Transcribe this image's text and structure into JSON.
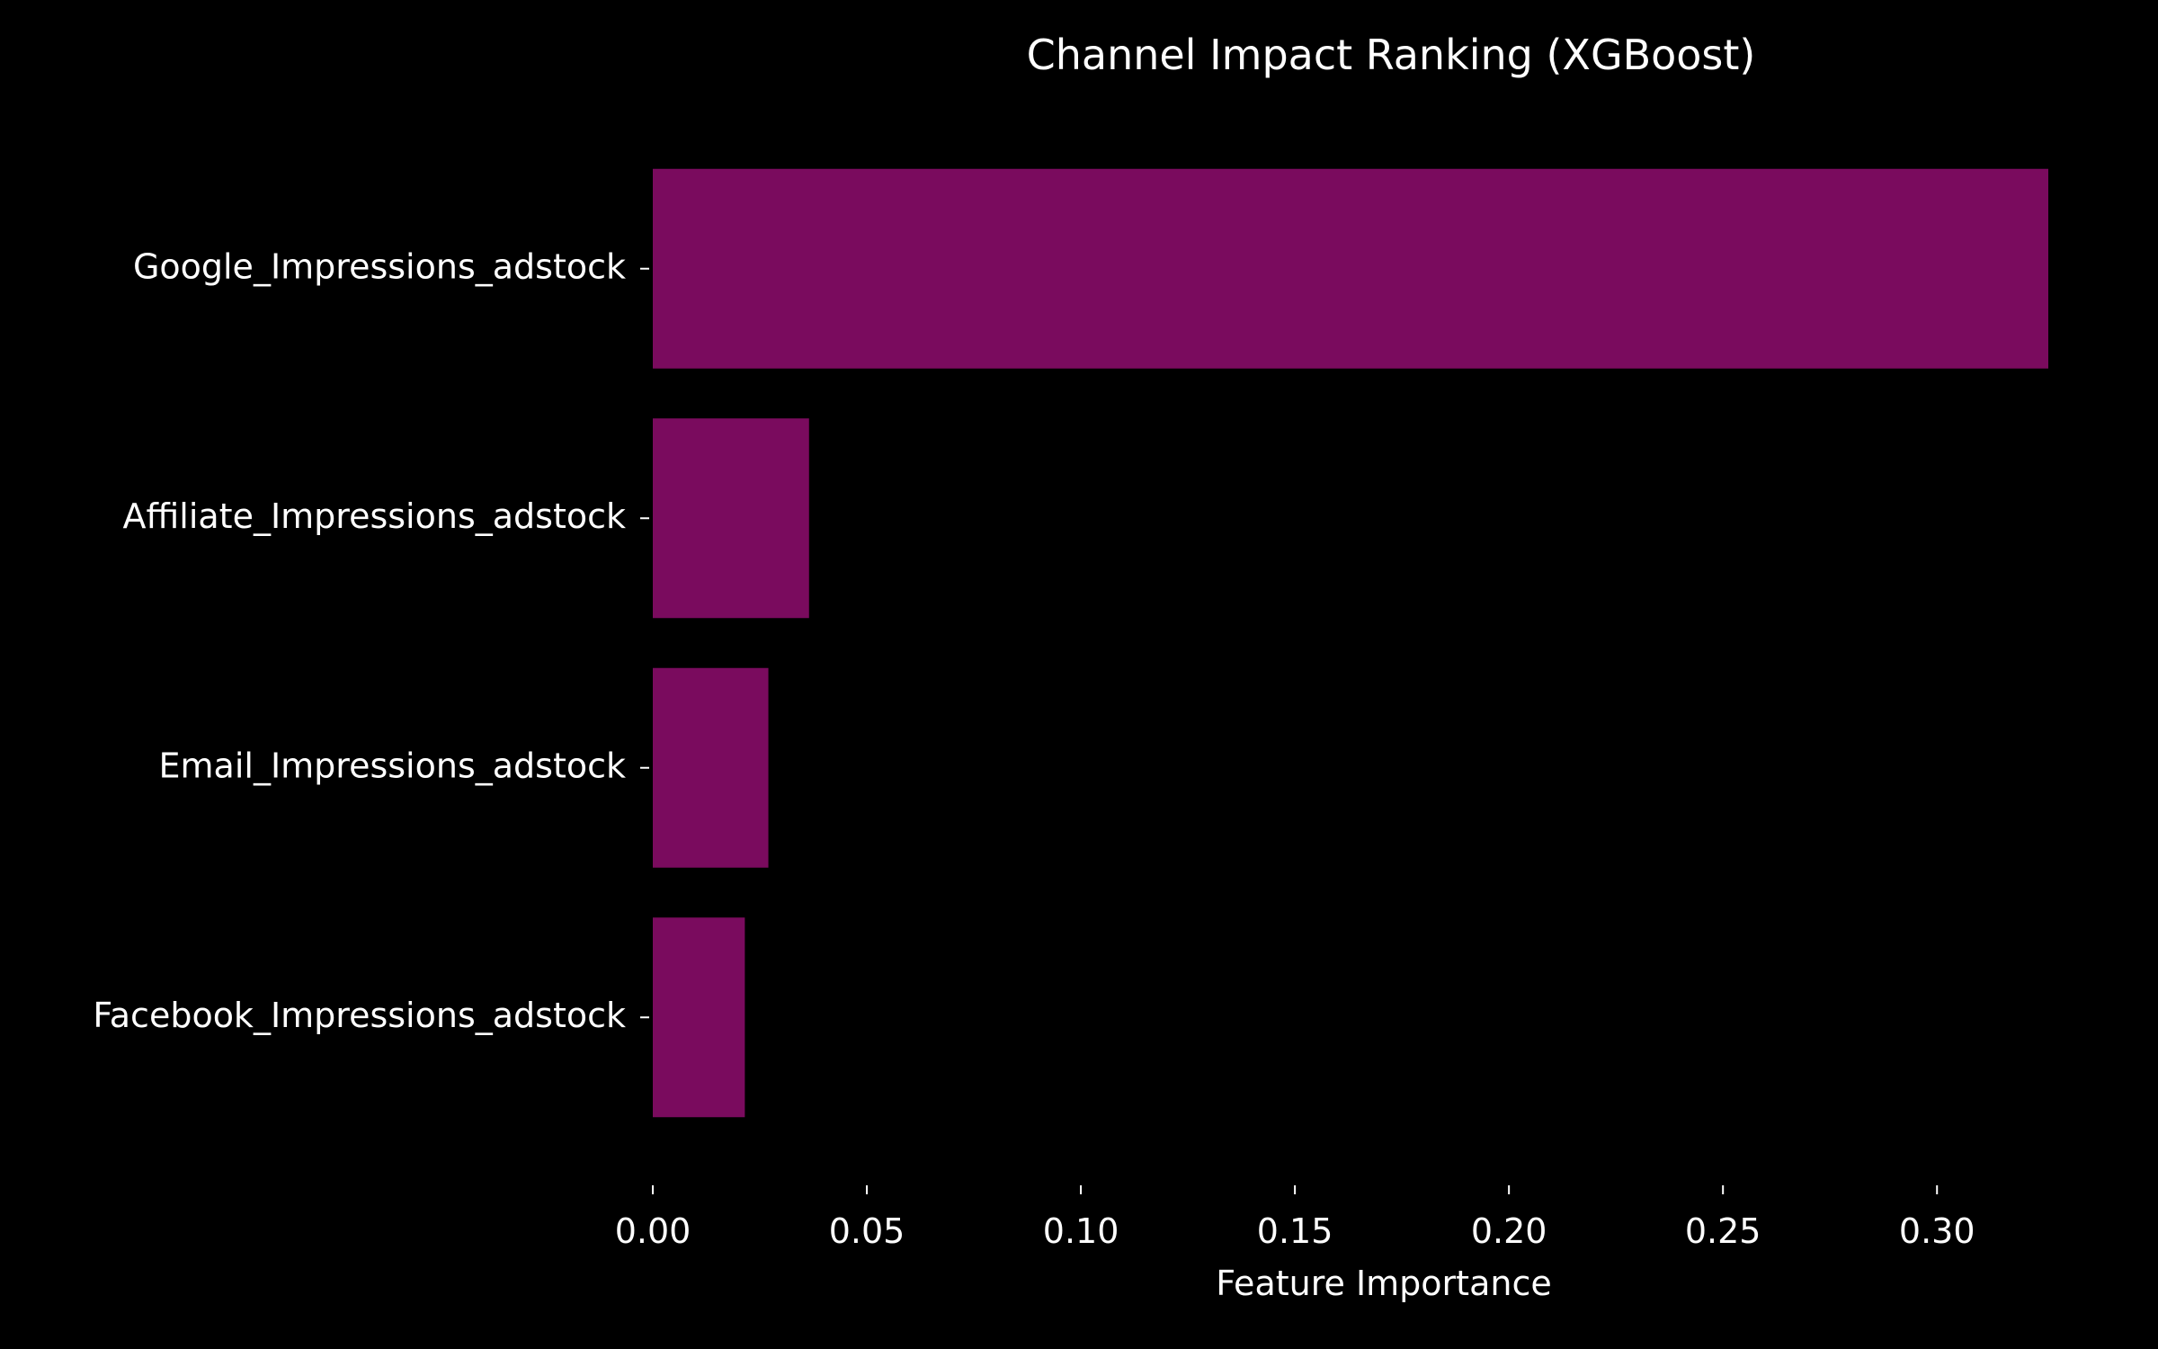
{
  "chart_data": {
    "type": "bar",
    "orientation": "horizontal",
    "title": "Channel Impact Ranking (XGBoost)",
    "xlabel": "Feature Importance",
    "ylabel": "",
    "categories": [
      "Google_Impressions_adstock",
      "Affiliate_Impressions_adstock",
      "Email_Impressions_adstock",
      "Facebook_Impressions_adstock"
    ],
    "values": [
      0.326,
      0.0365,
      0.027,
      0.0215
    ],
    "xlim": [
      0,
      0.326
    ],
    "xticks": [
      "0.00",
      "0.05",
      "0.10",
      "0.15",
      "0.20",
      "0.25",
      "0.30"
    ],
    "grid": false,
    "legend": "none",
    "colors": {
      "background": "#000000",
      "bar": "#7a0b5e",
      "text": "#ffffff"
    }
  }
}
